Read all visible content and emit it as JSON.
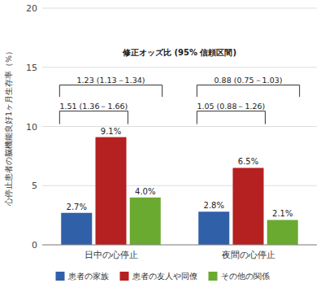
{
  "chart_data": {
    "type": "bar",
    "categories": [
      "日中の心停止",
      "夜間の心停止"
    ],
    "series": [
      {
        "name": "患者の家族",
        "color": "#3060a8",
        "values": [
          2.7,
          2.8
        ],
        "value_labels": [
          "2.7%",
          "2.8%"
        ]
      },
      {
        "name": "患者の友人や同僚",
        "color": "#b52020",
        "values": [
          9.1,
          6.5
        ],
        "value_labels": [
          "9.1%",
          "6.5%"
        ]
      },
      {
        "name": "その他の関係",
        "color": "#6aaa30",
        "values": [
          4.0,
          2.1
        ],
        "value_labels": [
          "4.0%",
          "2.1%"
        ]
      }
    ],
    "ylabel": "心停止患者の脳機能良好1ヶ月生存率（%）",
    "ylim": [
      0,
      20
    ],
    "yticks": [
      0,
      5,
      10,
      15,
      20
    ],
    "annotations": [
      "修正オッズ比 (95% 信頼区間)",
      "1.51 (1.36－1.66)",
      "1.23 (1.13－1.34)",
      "1.05 (0.88－1.26)",
      "0.88 (0.75－1.03)"
    ],
    "grid": true,
    "legend": "bottom",
    "data_labels": true
  }
}
